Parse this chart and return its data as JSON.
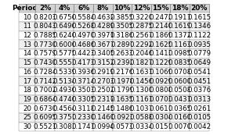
{
  "title": "",
  "columns": [
    "Periods",
    "2%",
    "4%",
    "6%",
    "8%",
    "10%",
    "12%",
    "15%",
    "18%",
    "20%"
  ],
  "rows": [
    [
      10,
      0.8203,
      0.6756,
      0.5584,
      0.4632,
      0.3855,
      0.322,
      0.2472,
      0.1911,
      0.1615
    ],
    [
      11,
      0.8043,
      0.6496,
      0.5268,
      0.4289,
      0.3505,
      0.2875,
      0.214,
      0.1619,
      0.1346
    ],
    [
      12,
      0.7885,
      0.6246,
      0.497,
      0.3971,
      0.3186,
      0.2567,
      0.1869,
      0.1372,
      0.1122
    ],
    [
      13,
      0.773,
      0.6006,
      0.4686,
      0.3677,
      0.2897,
      0.2292,
      0.1625,
      0.1163,
      0.0935
    ],
    [
      14,
      0.7579,
      0.5775,
      0.4423,
      0.3405,
      0.2633,
      0.2046,
      0.1413,
      0.0985,
      0.0779
    ],
    [
      15,
      0.743,
      0.5553,
      0.4173,
      0.3152,
      0.2392,
      0.1827,
      0.1229,
      0.0835,
      0.0649
    ],
    [
      16,
      0.7284,
      0.5339,
      0.3936,
      0.2919,
      0.2176,
      0.1631,
      0.1069,
      0.0708,
      0.0541
    ],
    [
      17,
      0.7142,
      0.5134,
      0.3714,
      0.2703,
      0.1978,
      0.1456,
      0.0929,
      0.06,
      0.0451
    ],
    [
      18,
      0.7002,
      0.4936,
      0.3503,
      0.2502,
      0.1799,
      0.13,
      0.0808,
      0.0508,
      0.0376
    ],
    [
      19,
      0.6864,
      0.4746,
      0.3305,
      0.2317,
      0.1635,
      0.1161,
      0.0703,
      0.0431,
      0.0313
    ],
    [
      20,
      0.673,
      0.4564,
      0.3118,
      0.2145,
      0.1486,
      0.1037,
      0.0611,
      0.0365,
      0.0261
    ],
    [
      25,
      0.6095,
      0.3751,
      0.233,
      0.146,
      0.0923,
      0.0588,
      0.0304,
      0.016,
      0.0105
    ],
    [
      30,
      0.5521,
      0.3083,
      0.1741,
      0.0994,
      0.0573,
      0.0334,
      0.0151,
      0.007,
      0.0042
    ]
  ],
  "header_bg": "#d3d3d3",
  "row_bg_odd": "#ffffff",
  "row_bg_even": "#f0f0f0",
  "font_size": 6.2,
  "header_font_size": 6.5,
  "figsize": [
    2.91,
    1.73
  ],
  "dpi": 100
}
